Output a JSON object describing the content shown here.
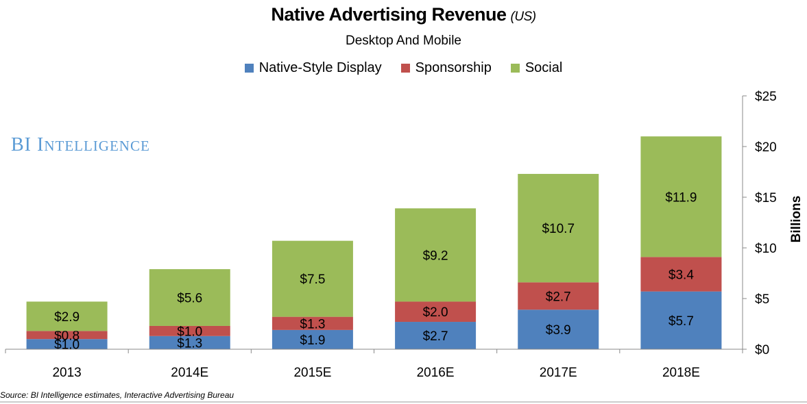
{
  "chart_data": {
    "type": "bar",
    "stacked": true,
    "title": "Native Advertising Revenue",
    "title_suffix": "(US)",
    "subtitle": "Desktop And Mobile",
    "ylabel": "Billions",
    "xlabel": "",
    "categories": [
      "2013",
      "2014E",
      "2015E",
      "2016E",
      "2017E",
      "2018E"
    ],
    "ylim": [
      0,
      25
    ],
    "yticks": [
      0,
      5,
      10,
      15,
      20,
      25
    ],
    "ytick_labels": [
      "$0",
      "$5",
      "$10",
      "$15",
      "$20",
      "$25"
    ],
    "y_axis_side": "right",
    "grid": false,
    "legend_position": "top",
    "series": [
      {
        "name": "Native-Style Display",
        "color": "#4f81bd",
        "values": [
          1.0,
          1.3,
          1.9,
          2.7,
          3.9,
          5.7
        ],
        "labels": [
          "$1.0",
          "$1.3",
          "$1.9",
          "$2.7",
          "$3.9",
          "$5.7"
        ]
      },
      {
        "name": "Sponsorship",
        "color": "#c0504d",
        "values": [
          0.8,
          1.0,
          1.3,
          2.0,
          2.7,
          3.4
        ],
        "labels": [
          "$0.8",
          "$1.0",
          "$1.3",
          "$2.0",
          "$2.7",
          "$3.4"
        ]
      },
      {
        "name": "Social",
        "color": "#9bbb59",
        "values": [
          2.9,
          5.6,
          7.5,
          9.2,
          10.7,
          11.9
        ],
        "labels": [
          "$2.9",
          "$5.6",
          "$7.5",
          "$9.2",
          "$10.7",
          "$11.9"
        ]
      }
    ]
  },
  "watermark": "BI INTELLIGENCE",
  "source": "Source: BI Intelligence estimates, Interactive Advertising Bureau"
}
